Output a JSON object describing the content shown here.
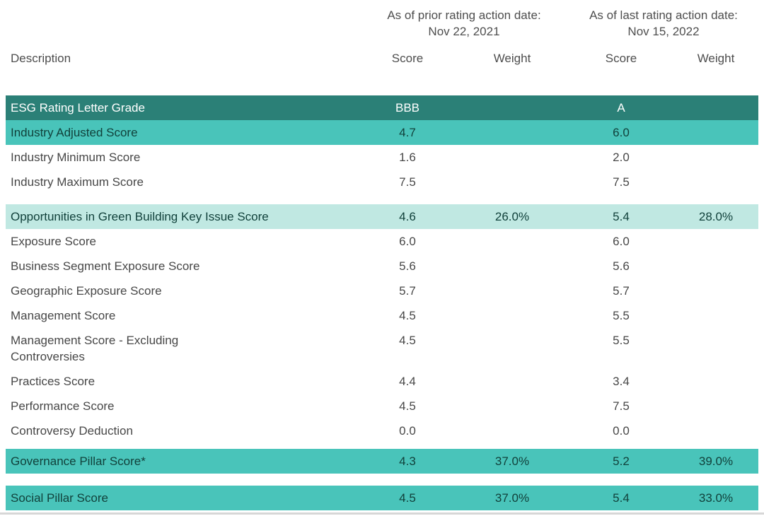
{
  "colors": {
    "dark_teal_row": "#2B8077",
    "medium_teal_row": "#49C4BA",
    "light_teal_row": "#C0E8E2",
    "teal_row_text": "#11413B",
    "body_text": "#474747",
    "header_text": "#4E4E4E"
  },
  "header": {
    "description_label": "Description",
    "groups": [
      {
        "title": "As of prior rating action date:",
        "date": "Nov 22, 2021",
        "score_label": "Score",
        "weight_label": "Weight"
      },
      {
        "title": "As of last rating action date:",
        "date": "Nov 15, 2022",
        "score_label": "Score",
        "weight_label": "Weight"
      }
    ]
  },
  "chart_data": {
    "type": "table",
    "column_groups": [
      "As of prior rating action date: Nov 22, 2021",
      "As of last rating action date: Nov 15, 2022"
    ],
    "columns": [
      "Description",
      "Score",
      "Weight",
      "Score",
      "Weight"
    ],
    "sections": [
      {
        "rows": [
          {
            "label": "ESG Rating Letter Grade",
            "prior_score": "BBB",
            "prior_weight": "",
            "last_score": "A",
            "last_weight": "",
            "emphasis": "dark"
          },
          {
            "label": "Industry Adjusted Score",
            "prior_score": "4.7",
            "prior_weight": "",
            "last_score": "6.0",
            "last_weight": "",
            "emphasis": "medium"
          },
          {
            "label": "Industry Minimum Score",
            "prior_score": "1.6",
            "prior_weight": "",
            "last_score": "2.0",
            "last_weight": "",
            "emphasis": "plain"
          },
          {
            "label": "Industry Maximum Score",
            "prior_score": "7.5",
            "prior_weight": "",
            "last_score": "7.5",
            "last_weight": "",
            "emphasis": "plain"
          }
        ]
      },
      {
        "rows": [
          {
            "label": "Opportunities in Green Building Key Issue Score",
            "prior_score": "4.6",
            "prior_weight": "26.0%",
            "last_score": "5.4",
            "last_weight": "28.0%",
            "emphasis": "light"
          },
          {
            "label": "Exposure Score",
            "prior_score": "6.0",
            "prior_weight": "",
            "last_score": "6.0",
            "last_weight": "",
            "emphasis": "plain"
          },
          {
            "label": "Business Segment Exposure Score",
            "prior_score": "5.6",
            "prior_weight": "",
            "last_score": "5.6",
            "last_weight": "",
            "emphasis": "plain"
          },
          {
            "label": "Geographic Exposure Score",
            "prior_score": "5.7",
            "prior_weight": "",
            "last_score": "5.7",
            "last_weight": "",
            "emphasis": "plain"
          },
          {
            "label": "Management Score",
            "prior_score": "4.5",
            "prior_weight": "",
            "last_score": "5.5",
            "last_weight": "",
            "emphasis": "plain"
          },
          {
            "label": "Management Score - Excluding\nControversies",
            "prior_score": "4.5",
            "prior_weight": "",
            "last_score": "5.5",
            "last_weight": "",
            "emphasis": "plain"
          },
          {
            "label": "Practices Score",
            "prior_score": "4.4",
            "prior_weight": "",
            "last_score": "3.4",
            "last_weight": "",
            "emphasis": "plain"
          },
          {
            "label": "Performance Score",
            "prior_score": "4.5",
            "prior_weight": "",
            "last_score": "7.5",
            "last_weight": "",
            "emphasis": "plain"
          },
          {
            "label": "Controversy Deduction",
            "prior_score": "0.0",
            "prior_weight": "",
            "last_score": "0.0",
            "last_weight": "",
            "emphasis": "plain"
          }
        ]
      },
      {
        "rows": [
          {
            "label": "Governance Pillar Score*",
            "prior_score": "4.3",
            "prior_weight": "37.0%",
            "last_score": "5.2",
            "last_weight": "39.0%",
            "emphasis": "medium"
          }
        ]
      },
      {
        "rows": [
          {
            "label": "Social Pillar Score",
            "prior_score": "4.5",
            "prior_weight": "37.0%",
            "last_score": "5.4",
            "last_weight": "33.0%",
            "emphasis": "medium"
          }
        ]
      }
    ]
  }
}
